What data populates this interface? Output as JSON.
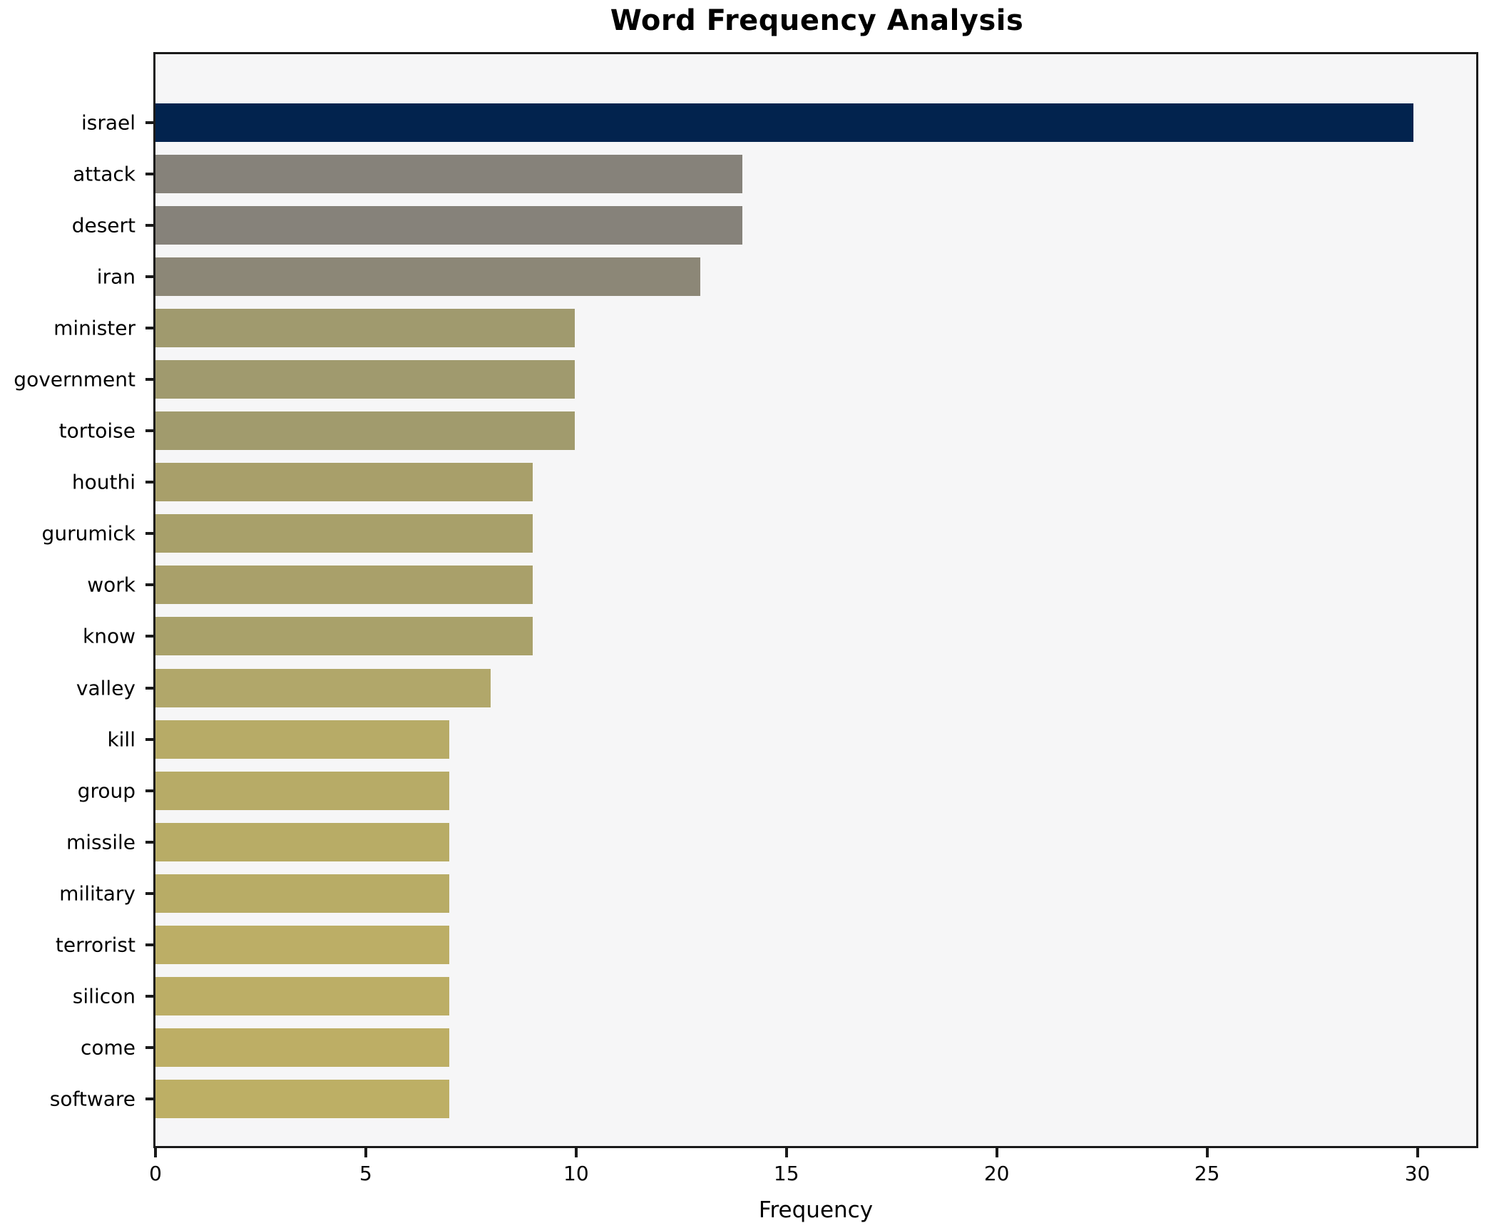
{
  "title": "Word Frequency Analysis",
  "chart_data": {
    "type": "bar",
    "orientation": "horizontal",
    "title": "Word Frequency Analysis",
    "xlabel": "Frequency",
    "ylabel": "",
    "xlim": [
      0,
      31.5
    ],
    "x_ticks": [
      0,
      5,
      10,
      15,
      20,
      25,
      30
    ],
    "grid": false,
    "legend": "none",
    "plot_background": "#f6f6f7",
    "axis_color": "#1a1a1a",
    "categories": [
      "israel",
      "attack",
      "desert",
      "iran",
      "minister",
      "government",
      "tortoise",
      "houthi",
      "gurumick",
      "work",
      "know",
      "valley",
      "kill",
      "group",
      "missile",
      "military",
      "terrorist",
      "silicon",
      "come",
      "software"
    ],
    "values": [
      30,
      14,
      14,
      13,
      10,
      10,
      10,
      9,
      9,
      9,
      9,
      8,
      7,
      7,
      7,
      7,
      7,
      7,
      7,
      7
    ],
    "bar_colors": [
      "#02234e",
      "#86827a",
      "#86827a",
      "#8c8777",
      "#a09a6e",
      "#a09a6e",
      "#a19b6d",
      "#a89f6a",
      "#a8a06a",
      "#a9a06a",
      "#a9a16a",
      "#b1a76a",
      "#b7ab67",
      "#b7ab67",
      "#b8ac66",
      "#b8ac66",
      "#bcae66",
      "#bcae66",
      "#bdae65",
      "#bdaf65"
    ]
  }
}
